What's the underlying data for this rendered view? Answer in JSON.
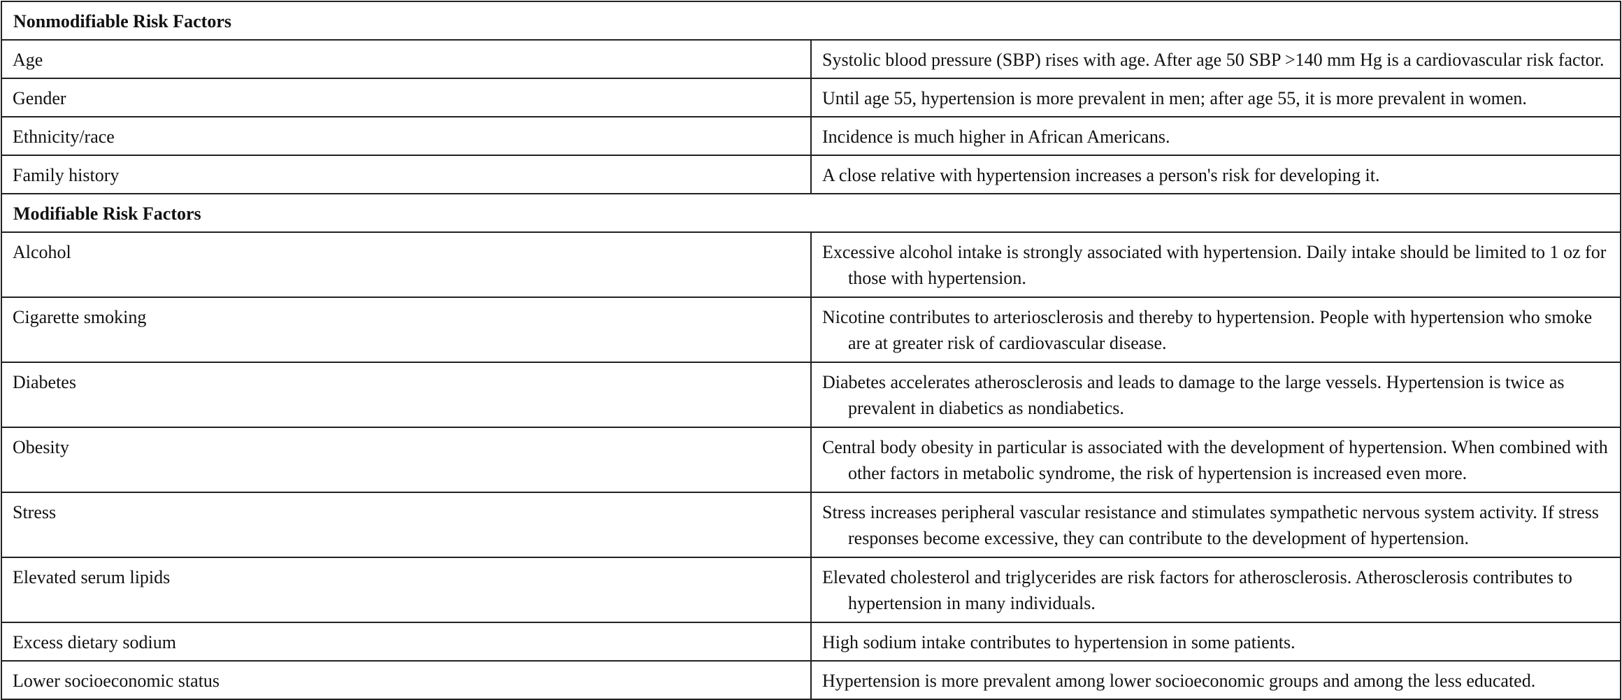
{
  "sections": [
    {
      "title": "Nonmodifiable Risk Factors",
      "rows": [
        [
          "Age",
          "Systolic blood pressure (SBP) rises with age. After age 50 SBP >140 mm Hg is a cardiovascular risk factor."
        ],
        [
          "Gender",
          "Until age 55, hypertension is more prevalent in men; after age 55, it is more prevalent in women."
        ],
        [
          "Ethnicity/race",
          "Incidence is much higher in African Americans."
        ],
        [
          "Family history",
          "A close relative with hypertension increases a person's risk for developing it."
        ]
      ]
    },
    {
      "title": "Modifiable Risk Factors",
      "rows": [
        [
          "Alcohol",
          "Excessive alcohol intake is strongly associated with hypertension. Daily intake should be limited to 1 oz for those with hypertension."
        ],
        [
          "Cigarette smoking",
          "Nicotine contributes to arteriosclerosis and thereby to hypertension. People with hypertension who smoke are at greater risk of cardiovascular disease."
        ],
        [
          "Diabetes",
          "Diabetes accelerates atherosclerosis and leads to damage to the large vessels. Hypertension is twice as prevalent in diabetics as nondiabetics."
        ],
        [
          "Obesity",
          "Central body obesity in particular is associated with the development of hypertension. When combined with other factors in metabolic syndrome, the risk of hypertension is increased even more."
        ],
        [
          "Stress",
          "Stress increases peripheral vascular resistance and stimulates sympathetic nervous system activity. If stress responses become excessive, they can contribute to the development of hypertension."
        ],
        [
          "Elevated serum lipids",
          "Elevated cholesterol and triglycerides are risk factors for atherosclerosis. Atherosclerosis contributes to hypertension in many individuals."
        ],
        [
          "Excess dietary sodium",
          "High sodium intake contributes to hypertension in some patients."
        ],
        [
          "Lower socioeconomic status",
          "Hypertension is more prevalent among lower socioeconomic groups and among the less educated."
        ]
      ]
    }
  ]
}
